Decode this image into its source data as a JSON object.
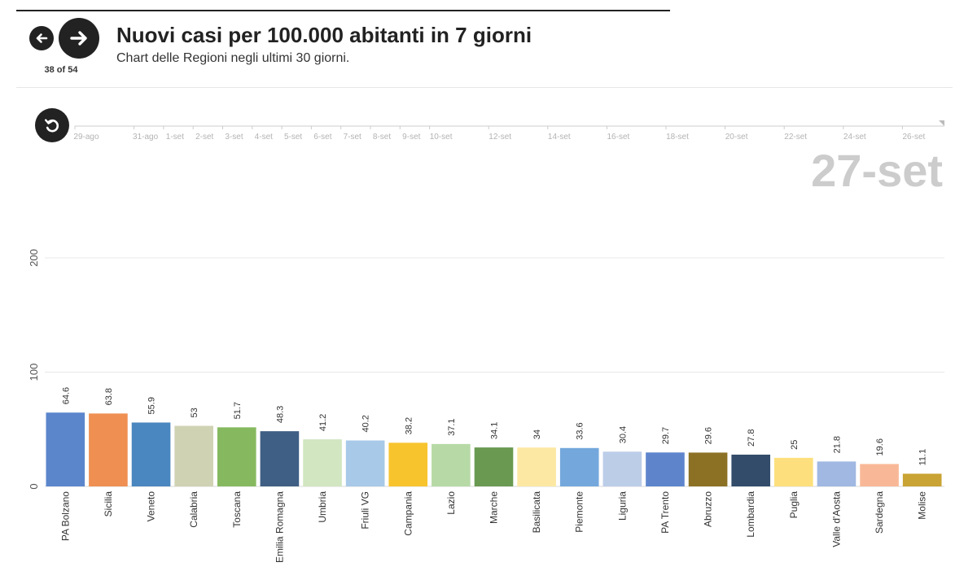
{
  "nav": {
    "counter": "38 of 54",
    "prev_icon": "arrow-left-icon",
    "next_icon": "arrow-right-icon",
    "replay_icon": "replay-icon"
  },
  "header": {
    "title": "Nuovi casi per 100.000 abitanti in 7 giorni",
    "subtitle": "Chart delle Regioni negli ultimi 30 giorni."
  },
  "timeline": {
    "ticks": [
      "29-ago",
      "31-ago",
      "1-set",
      "2-set",
      "3-set",
      "4-set",
      "5-set",
      "6-set",
      "7-set",
      "8-set",
      "9-set",
      "10-set",
      "12-set",
      "14-set",
      "16-set",
      "18-set",
      "20-set",
      "22-set",
      "24-set",
      "26-set"
    ],
    "current_date": "27-set"
  },
  "chart_data": {
    "type": "bar",
    "title": "Nuovi casi per 100.000 abitanti in 7 giorni",
    "subtitle": "Chart delle Regioni negli ultimi 30 giorni.",
    "ylim": [
      0,
      200
    ],
    "yticks": [
      0,
      100,
      200
    ],
    "grid": true,
    "categories": [
      "PA Bolzano",
      "Sicilia",
      "Veneto",
      "Calabria",
      "Toscana",
      "Emilia Romagna",
      "Umbria",
      "Friuli VG",
      "Campania",
      "Lazio",
      "Marche",
      "Basilicata",
      "Piemonte",
      "Liguria",
      "PA Trento",
      "Abruzzo",
      "Lombardia",
      "Puglia",
      "Valle d'Aosta",
      "Sardegna",
      "Molise"
    ],
    "values": [
      64.6,
      63.8,
      55.9,
      53,
      51.7,
      48.3,
      41.2,
      40.2,
      38.2,
      37.1,
      34.1,
      34,
      33.6,
      30.4,
      29.7,
      29.6,
      27.8,
      25,
      21.8,
      19.6,
      11.1
    ],
    "colors": [
      "#5b86cc",
      "#ef8f52",
      "#4a86bf",
      "#d0d2b4",
      "#86b95f",
      "#3f5f84",
      "#d1e6c1",
      "#a8c9e8",
      "#f8c42e",
      "#b7d9a6",
      "#6a9a52",
      "#fce8a3",
      "#74a8dc",
      "#bccde8",
      "#5e85cc",
      "#8c7125",
      "#324c6a",
      "#fde07d",
      "#a0b8e2",
      "#f8b897",
      "#c9a333"
    ]
  }
}
